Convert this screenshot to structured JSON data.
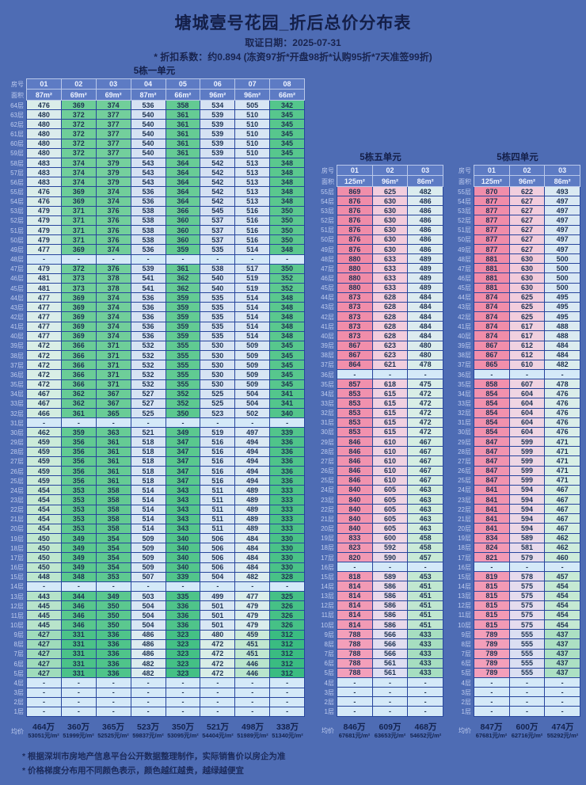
{
  "header": {
    "title": "塘城壹号花园_折后总价分布表",
    "date_line": "取证日期：2025-07-31",
    "discount_line": "* 折扣系数：约0.894 (冻资97折*开盘98折*认购95折*7天准签99折)"
  },
  "labels": {
    "room": "房号",
    "area": "面积",
    "avg": "均价",
    "floor_suffix": "层",
    "dash": "-"
  },
  "footnotes": [
    "* 根据深圳市房地产信息平台公开数据整理制作，实际销售价以房企为准",
    "* 价格梯度分布用不同颜色表示，颜色越红越贵，越绿越便宜"
  ],
  "colors": {
    "page_bg": "#4e6cb4",
    "title_text": "#141f49",
    "subtitle_text": "#19244f",
    "header_cell_bg": "#5d7bc4",
    "header_cell_text": "#eef3ff",
    "header_border": "#b9c8ea",
    "grid_border": "#27459c",
    "floor_label_text": "#bfccef",
    "value_text": "#1d3150",
    "dash_bg": "#d4e9f8",
    "avg_text": "#13234e",
    "footnote_text": "#1b2a5a"
  },
  "gradient_stops": [
    [
      312,
      "#3abc81"
    ],
    [
      345,
      "#57c78d"
    ],
    [
      380,
      "#76d09d"
    ],
    [
      430,
      "#a2ddbd"
    ],
    [
      455,
      "#c6e9d4"
    ],
    [
      470,
      "#d8efe5"
    ],
    [
      485,
      "#dcebf0"
    ],
    [
      500,
      "#d8e7f4"
    ],
    [
      545,
      "#d5e1f3"
    ],
    [
      570,
      "#e3ddf0"
    ],
    [
      600,
      "#eed6e4"
    ],
    [
      635,
      "#f3c9da"
    ],
    [
      720,
      "#f3adc4"
    ],
    [
      800,
      "#f39db8"
    ],
    [
      881,
      "#f08ba8"
    ]
  ],
  "tables": [
    {
      "title": "5栋一单元",
      "columns": [
        "01",
        "02",
        "03",
        "04",
        "05",
        "06",
        "07",
        "08"
      ],
      "areas": [
        "87m²",
        "69m²",
        "69m²",
        "87m²",
        "66m²",
        "96m²",
        "96m²",
        "66m²"
      ],
      "floors_from": 64,
      "values": [
        [
          476,
          369,
          374,
          536,
          358,
          534,
          505,
          342
        ],
        [
          480,
          372,
          377,
          540,
          361,
          539,
          510,
          345
        ],
        [
          480,
          372,
          377,
          540,
          361,
          539,
          510,
          345
        ],
        [
          480,
          372,
          377,
          540,
          361,
          539,
          510,
          345
        ],
        [
          480,
          372,
          377,
          540,
          361,
          539,
          510,
          345
        ],
        [
          480,
          372,
          377,
          540,
          361,
          539,
          510,
          345
        ],
        [
          483,
          374,
          379,
          543,
          364,
          542,
          513,
          348
        ],
        [
          483,
          374,
          379,
          543,
          364,
          542,
          513,
          348
        ],
        [
          483,
          374,
          379,
          543,
          364,
          542,
          513,
          348
        ],
        [
          476,
          369,
          374,
          536,
          364,
          542,
          513,
          348
        ],
        [
          476,
          369,
          374,
          536,
          364,
          542,
          513,
          348
        ],
        [
          479,
          371,
          376,
          538,
          366,
          545,
          516,
          350
        ],
        [
          479,
          371,
          376,
          538,
          360,
          537,
          516,
          350
        ],
        [
          479,
          371,
          376,
          538,
          360,
          537,
          516,
          350
        ],
        [
          479,
          371,
          376,
          538,
          360,
          537,
          516,
          350
        ],
        [
          477,
          369,
          374,
          536,
          359,
          535,
          514,
          348
        ],
        null,
        [
          479,
          372,
          376,
          539,
          361,
          538,
          517,
          350
        ],
        [
          481,
          373,
          378,
          541,
          362,
          540,
          519,
          352
        ],
        [
          481,
          373,
          378,
          541,
          362,
          540,
          519,
          352
        ],
        [
          477,
          369,
          374,
          536,
          359,
          535,
          514,
          348
        ],
        [
          477,
          369,
          374,
          536,
          359,
          535,
          514,
          348
        ],
        [
          477,
          369,
          374,
          536,
          359,
          535,
          514,
          348
        ],
        [
          477,
          369,
          374,
          536,
          359,
          535,
          514,
          348
        ],
        [
          477,
          369,
          374,
          536,
          359,
          535,
          514,
          348
        ],
        [
          472,
          366,
          371,
          532,
          355,
          530,
          509,
          345
        ],
        [
          472,
          366,
          371,
          532,
          355,
          530,
          509,
          345
        ],
        [
          472,
          366,
          371,
          532,
          355,
          530,
          509,
          345
        ],
        [
          472,
          366,
          371,
          532,
          355,
          530,
          509,
          345
        ],
        [
          472,
          366,
          371,
          532,
          355,
          530,
          509,
          345
        ],
        [
          467,
          362,
          367,
          527,
          352,
          525,
          504,
          341
        ],
        [
          467,
          362,
          367,
          527,
          352,
          525,
          504,
          341
        ],
        [
          466,
          361,
          365,
          525,
          350,
          523,
          502,
          340
        ],
        null,
        [
          462,
          359,
          363,
          521,
          349,
          519,
          497,
          339
        ],
        [
          459,
          356,
          361,
          518,
          347,
          516,
          494,
          336
        ],
        [
          459,
          356,
          361,
          518,
          347,
          516,
          494,
          336
        ],
        [
          459,
          356,
          361,
          518,
          347,
          516,
          494,
          336
        ],
        [
          459,
          356,
          361,
          518,
          347,
          516,
          494,
          336
        ],
        [
          459,
          356,
          361,
          518,
          347,
          516,
          494,
          336
        ],
        [
          454,
          353,
          358,
          514,
          343,
          511,
          489,
          333
        ],
        [
          454,
          353,
          358,
          514,
          343,
          511,
          489,
          333
        ],
        [
          454,
          353,
          358,
          514,
          343,
          511,
          489,
          333
        ],
        [
          454,
          353,
          358,
          514,
          343,
          511,
          489,
          333
        ],
        [
          454,
          353,
          358,
          514,
          343,
          511,
          489,
          333
        ],
        [
          450,
          349,
          354,
          509,
          340,
          506,
          484,
          330
        ],
        [
          450,
          349,
          354,
          509,
          340,
          506,
          484,
          330
        ],
        [
          450,
          349,
          354,
          509,
          340,
          506,
          484,
          330
        ],
        [
          450,
          349,
          354,
          509,
          340,
          506,
          484,
          330
        ],
        [
          448,
          348,
          353,
          507,
          339,
          504,
          482,
          328
        ],
        null,
        [
          443,
          344,
          349,
          503,
          335,
          499,
          477,
          325
        ],
        [
          445,
          346,
          350,
          504,
          336,
          501,
          479,
          326
        ],
        [
          445,
          346,
          350,
          504,
          336,
          501,
          479,
          326
        ],
        [
          445,
          346,
          350,
          504,
          336,
          501,
          479,
          326
        ],
        [
          427,
          331,
          336,
          486,
          323,
          480,
          459,
          312
        ],
        [
          427,
          331,
          336,
          486,
          323,
          472,
          451,
          312
        ],
        [
          427,
          331,
          336,
          486,
          323,
          472,
          451,
          312
        ],
        [
          427,
          331,
          336,
          482,
          323,
          472,
          446,
          312
        ],
        [
          427,
          331,
          336,
          482,
          323,
          472,
          446,
          312
        ],
        null,
        null,
        null,
        null
      ],
      "avg_total": [
        "464万",
        "360万",
        "365万",
        "523万",
        "350万",
        "521万",
        "498万",
        "338万"
      ],
      "avg_unit": [
        "53051元/m²",
        "51999元/m²",
        "52525元/m²",
        "59837元/m²",
        "53095元/m²",
        "54404元/m²",
        "51989元/m²",
        "51340元/m²"
      ]
    },
    {
      "title": "5栋五单元",
      "columns": [
        "01",
        "02",
        "03"
      ],
      "areas": [
        "125m²",
        "96m²",
        "86m²"
      ],
      "floors_from": 55,
      "values": [
        [
          869,
          625,
          482
        ],
        [
          876,
          630,
          486
        ],
        [
          876,
          630,
          486
        ],
        [
          876,
          630,
          486
        ],
        [
          876,
          630,
          486
        ],
        [
          876,
          630,
          486
        ],
        [
          876,
          630,
          486
        ],
        [
          880,
          633,
          489
        ],
        [
          880,
          633,
          489
        ],
        [
          880,
          633,
          489
        ],
        [
          880,
          633,
          489
        ],
        [
          873,
          628,
          484
        ],
        [
          873,
          628,
          484
        ],
        [
          873,
          628,
          484
        ],
        [
          873,
          628,
          484
        ],
        [
          873,
          628,
          484
        ],
        [
          867,
          623,
          480
        ],
        [
          867,
          623,
          480
        ],
        [
          864,
          621,
          478
        ],
        null,
        [
          857,
          618,
          475
        ],
        [
          853,
          615,
          472
        ],
        [
          853,
          615,
          472
        ],
        [
          853,
          615,
          472
        ],
        [
          853,
          615,
          472
        ],
        [
          853,
          615,
          472
        ],
        [
          846,
          610,
          467
        ],
        [
          846,
          610,
          467
        ],
        [
          846,
          610,
          467
        ],
        [
          846,
          610,
          467
        ],
        [
          846,
          610,
          467
        ],
        [
          840,
          605,
          463
        ],
        [
          840,
          605,
          463
        ],
        [
          840,
          605,
          463
        ],
        [
          840,
          605,
          463
        ],
        [
          840,
          605,
          463
        ],
        [
          833,
          600,
          458
        ],
        [
          823,
          592,
          458
        ],
        [
          820,
          590,
          457
        ],
        null,
        [
          818,
          589,
          453
        ],
        [
          814,
          586,
          451
        ],
        [
          814,
          586,
          451
        ],
        [
          814,
          586,
          451
        ],
        [
          814,
          586,
          451
        ],
        [
          814,
          586,
          451
        ],
        [
          788,
          566,
          433
        ],
        [
          788,
          566,
          433
        ],
        [
          788,
          566,
          433
        ],
        [
          788,
          561,
          433
        ],
        [
          788,
          561,
          433
        ],
        null,
        null,
        null,
        null
      ],
      "avg_total": [
        "846万",
        "609万",
        "468万"
      ],
      "avg_unit": [
        "67681元/m²",
        "63653元/m²",
        "54652元/m²"
      ]
    },
    {
      "title": "5栋四单元",
      "columns": [
        "01",
        "02",
        "03"
      ],
      "areas": [
        "125m²",
        "96m²",
        "86m²"
      ],
      "floors_from": 55,
      "values": [
        [
          870,
          622,
          493
        ],
        [
          877,
          627,
          497
        ],
        [
          877,
          627,
          497
        ],
        [
          877,
          627,
          497
        ],
        [
          877,
          627,
          497
        ],
        [
          877,
          627,
          497
        ],
        [
          877,
          627,
          497
        ],
        [
          881,
          630,
          500
        ],
        [
          881,
          630,
          500
        ],
        [
          881,
          630,
          500
        ],
        [
          881,
          630,
          500
        ],
        [
          874,
          625,
          495
        ],
        [
          874,
          625,
          495
        ],
        [
          874,
          625,
          495
        ],
        [
          874,
          617,
          488
        ],
        [
          874,
          617,
          488
        ],
        [
          867,
          612,
          484
        ],
        [
          867,
          612,
          484
        ],
        [
          865,
          610,
          482
        ],
        null,
        [
          858,
          607,
          478
        ],
        [
          854,
          604,
          476
        ],
        [
          854,
          604,
          476
        ],
        [
          854,
          604,
          476
        ],
        [
          854,
          604,
          476
        ],
        [
          854,
          604,
          476
        ],
        [
          847,
          599,
          471
        ],
        [
          847,
          599,
          471
        ],
        [
          847,
          599,
          471
        ],
        [
          847,
          599,
          471
        ],
        [
          847,
          599,
          471
        ],
        [
          841,
          594,
          467
        ],
        [
          841,
          594,
          467
        ],
        [
          841,
          594,
          467
        ],
        [
          841,
          594,
          467
        ],
        [
          841,
          594,
          467
        ],
        [
          834,
          589,
          462
        ],
        [
          824,
          581,
          462
        ],
        [
          821,
          579,
          460
        ],
        null,
        [
          819,
          578,
          457
        ],
        [
          815,
          575,
          454
        ],
        [
          815,
          575,
          454
        ],
        [
          815,
          575,
          454
        ],
        [
          815,
          575,
          454
        ],
        [
          815,
          575,
          454
        ],
        [
          789,
          555,
          437
        ],
        [
          789,
          555,
          437
        ],
        [
          789,
          555,
          437
        ],
        [
          789,
          555,
          437
        ],
        [
          789,
          555,
          437
        ],
        null,
        null,
        null,
        null
      ],
      "avg_total": [
        "847万",
        "600万",
        "474万"
      ],
      "avg_unit": [
        "67681元/m²",
        "62716元/m²",
        "55292元/m²"
      ]
    }
  ]
}
